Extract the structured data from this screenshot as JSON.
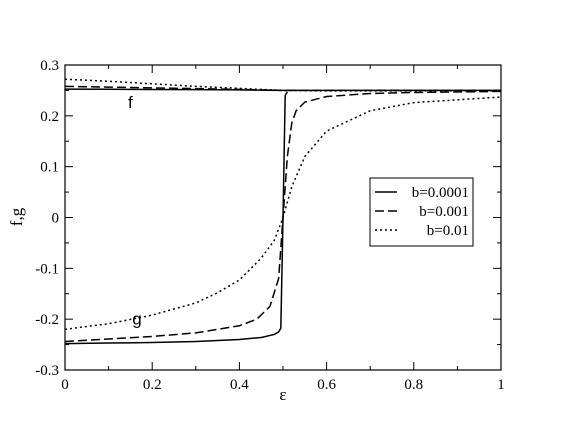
{
  "chart_data": {
    "type": "line",
    "xlabel": "ε",
    "ylabel": "f,g",
    "xlim": [
      0,
      1
    ],
    "ylim": [
      -0.3,
      0.3
    ],
    "x_ticks": [
      "0",
      "0.2",
      "0.4",
      "0.6",
      "0.8",
      "1"
    ],
    "y_ticks": [
      "-0.3",
      "-0.2",
      "-0.1",
      "0",
      "0.1",
      "0.2",
      "0.3"
    ],
    "grid": false,
    "legend_position": "right",
    "annotations": [
      {
        "text": "f",
        "x": 0.15,
        "y": 0.215
      },
      {
        "text": "g",
        "x": 0.165,
        "y": -0.21
      }
    ],
    "series": [
      {
        "name": "b=0.0001",
        "curve": "f",
        "dash": "solid",
        "x": [
          0,
          0.1,
          0.2,
          0.3,
          0.4,
          0.45,
          0.49,
          0.5,
          0.505,
          0.51,
          0.55,
          0.6,
          0.8,
          1.0
        ],
        "y": [
          0.2525,
          0.2522,
          0.2519,
          0.2515,
          0.251,
          0.2505,
          0.2501,
          0.25,
          0.2499,
          0.25,
          0.25,
          0.25,
          0.25,
          0.25
        ]
      },
      {
        "name": "b=0.0001",
        "curve": "g",
        "dash": "solid",
        "x": [
          0,
          0.1,
          0.2,
          0.3,
          0.4,
          0.45,
          0.48,
          0.49,
          0.495,
          0.5,
          0.505,
          0.51
        ],
        "y": [
          -0.248,
          -0.247,
          -0.246,
          -0.244,
          -0.24,
          -0.236,
          -0.23,
          -0.225,
          -0.218,
          0.0,
          0.24,
          0.247
        ]
      },
      {
        "name": "b=0.001",
        "curve": "f",
        "dash": "dashed",
        "x": [
          0,
          0.1,
          0.2,
          0.3,
          0.4,
          0.45,
          0.5,
          0.55,
          0.6,
          0.8,
          1.0
        ],
        "y": [
          0.258,
          0.2565,
          0.255,
          0.2535,
          0.252,
          0.251,
          0.25,
          0.25,
          0.25,
          0.25,
          0.25
        ]
      },
      {
        "name": "b=0.001",
        "curve": "g",
        "dash": "dashed",
        "x": [
          0,
          0.1,
          0.2,
          0.3,
          0.4,
          0.44,
          0.47,
          0.49,
          0.5,
          0.51,
          0.52,
          0.53,
          0.55,
          0.6,
          0.7,
          0.8,
          1.0
        ],
        "y": [
          -0.244,
          -0.239,
          -0.234,
          -0.227,
          -0.213,
          -0.2,
          -0.175,
          -0.12,
          0.0,
          0.12,
          0.185,
          0.21,
          0.227,
          0.238,
          0.244,
          0.246,
          0.248
        ]
      },
      {
        "name": "b=0.01",
        "curve": "f",
        "dash": "dotted",
        "x": [
          0,
          0.1,
          0.2,
          0.3,
          0.4,
          0.5,
          0.6,
          0.8,
          1.0
        ],
        "y": [
          0.272,
          0.268,
          0.263,
          0.258,
          0.254,
          0.25,
          0.249,
          0.249,
          0.249
        ]
      },
      {
        "name": "b=0.01",
        "curve": "g",
        "dash": "dotted",
        "x": [
          0,
          0.1,
          0.2,
          0.3,
          0.35,
          0.4,
          0.45,
          0.48,
          0.5,
          0.52,
          0.55,
          0.6,
          0.7,
          0.8,
          1.0
        ],
        "y": [
          -0.22,
          -0.209,
          -0.192,
          -0.168,
          -0.148,
          -0.123,
          -0.08,
          -0.045,
          0.0,
          0.06,
          0.12,
          0.17,
          0.21,
          0.226,
          0.237
        ]
      }
    ]
  }
}
